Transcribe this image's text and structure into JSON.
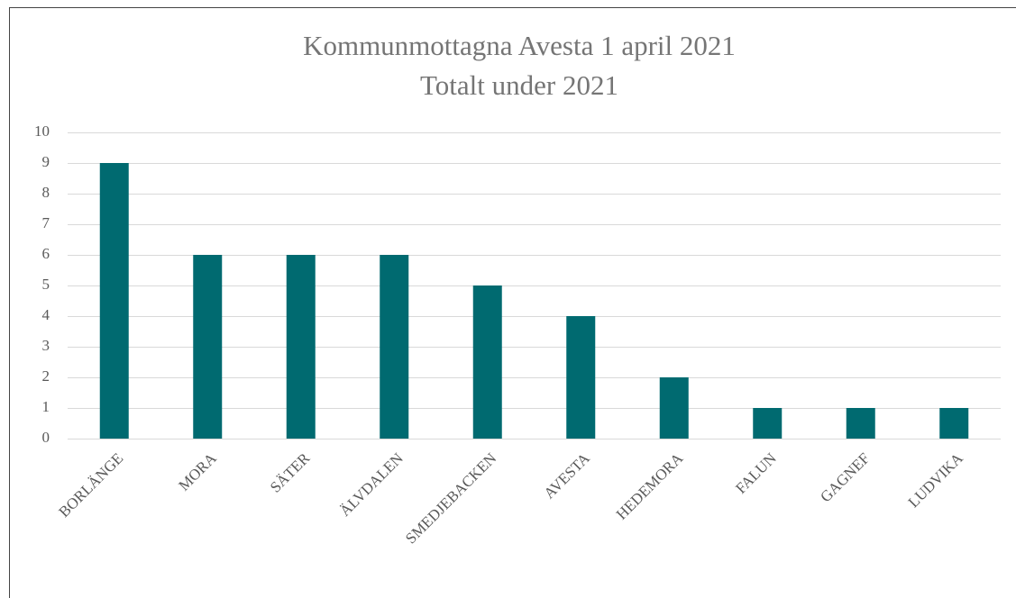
{
  "chart_data": {
    "type": "bar",
    "title": "Kommunmottagna Avesta 1 april 2021",
    "subtitle": "Totalt under 2021",
    "categories": [
      "BORLÄNGE",
      "MORA",
      "SÄTER",
      "ÄLVDALEN",
      "SMEDJEBACKEN",
      "AVESTA",
      "HEDEMORA",
      "FALUN",
      "GAGNEF",
      "LUDVIKA"
    ],
    "values": [
      9,
      6,
      6,
      6,
      5,
      4,
      2,
      1,
      1,
      1
    ],
    "color": "#006a70",
    "ylim": [
      0,
      10
    ],
    "yticks": [
      0,
      1,
      2,
      3,
      4,
      5,
      6,
      7,
      8,
      9,
      10
    ],
    "grid": true
  }
}
